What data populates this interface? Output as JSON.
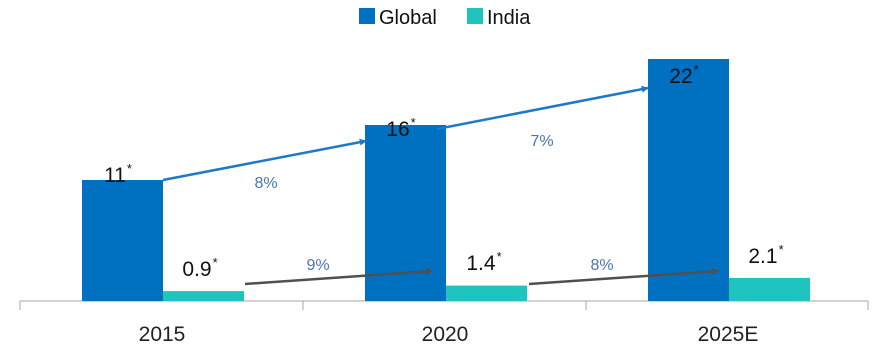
{
  "colors": {
    "global": "#0070C0",
    "india": "#1FC4BE",
    "global_arrow": "#1F78C8",
    "india_arrow": "#505050",
    "global_growth_text": "#4A74B6",
    "india_growth_text": "#4A74B6",
    "axis": "#A6A6A6"
  },
  "chart_data": {
    "type": "bar",
    "categories": [
      "2015",
      "2020",
      "2025E"
    ],
    "series": [
      {
        "name": "Global",
        "values": [
          11,
          16,
          22
        ],
        "labels": [
          "11",
          "16",
          "22"
        ]
      },
      {
        "name": "India",
        "values": [
          0.9,
          1.4,
          2.1
        ],
        "labels": [
          "0.9",
          "1.4",
          "2.1"
        ]
      }
    ],
    "label_marker": "*",
    "growth_rates": {
      "Global": [
        "8%",
        "7%"
      ],
      "India": [
        "9%",
        "8%"
      ]
    },
    "legend": {
      "position": "top-center",
      "entries": [
        "Global",
        "India"
      ]
    },
    "ylim": [
      0,
      27
    ],
    "grid": false,
    "title": "",
    "xlabel": "",
    "ylabel": ""
  }
}
